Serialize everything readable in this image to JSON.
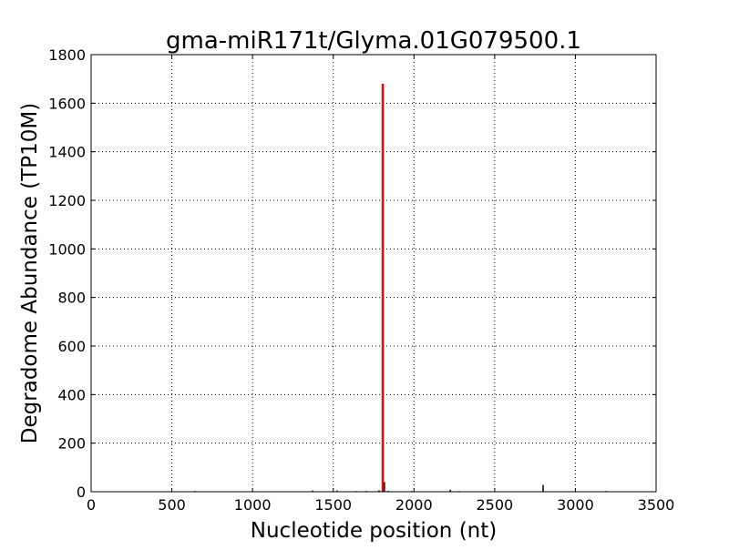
{
  "chart_data": {
    "type": "bar",
    "title": "gma-miR171t/Glyma.01G079500.1",
    "xlabel": "Nucleotide position (nt)",
    "ylabel": "Degradome Abundance (TP10M)",
    "xlim": [
      0,
      3500
    ],
    "ylim": [
      0,
      1800
    ],
    "xticks": [
      0,
      500,
      1000,
      1500,
      2000,
      2500,
      3000,
      3500
    ],
    "yticks": [
      0,
      200,
      400,
      600,
      800,
      1000,
      1200,
      1400,
      1600,
      1800
    ],
    "grid": true,
    "highlight": {
      "x": 1807,
      "y": 1680,
      "color": "#ff0000"
    },
    "background_series": {
      "color": "#000000",
      "points": [
        {
          "x": 643,
          "y": 3
        },
        {
          "x": 1372,
          "y": 5
        },
        {
          "x": 1524,
          "y": 5
        },
        {
          "x": 1640,
          "y": 3
        },
        {
          "x": 1705,
          "y": 3
        },
        {
          "x": 1784,
          "y": 6
        },
        {
          "x": 1817,
          "y": 40
        },
        {
          "x": 1840,
          "y": 4
        },
        {
          "x": 1987,
          "y": 3
        },
        {
          "x": 2225,
          "y": 8
        },
        {
          "x": 2281,
          "y": 3
        },
        {
          "x": 2800,
          "y": 28
        },
        {
          "x": 3190,
          "y": 3
        }
      ]
    }
  }
}
